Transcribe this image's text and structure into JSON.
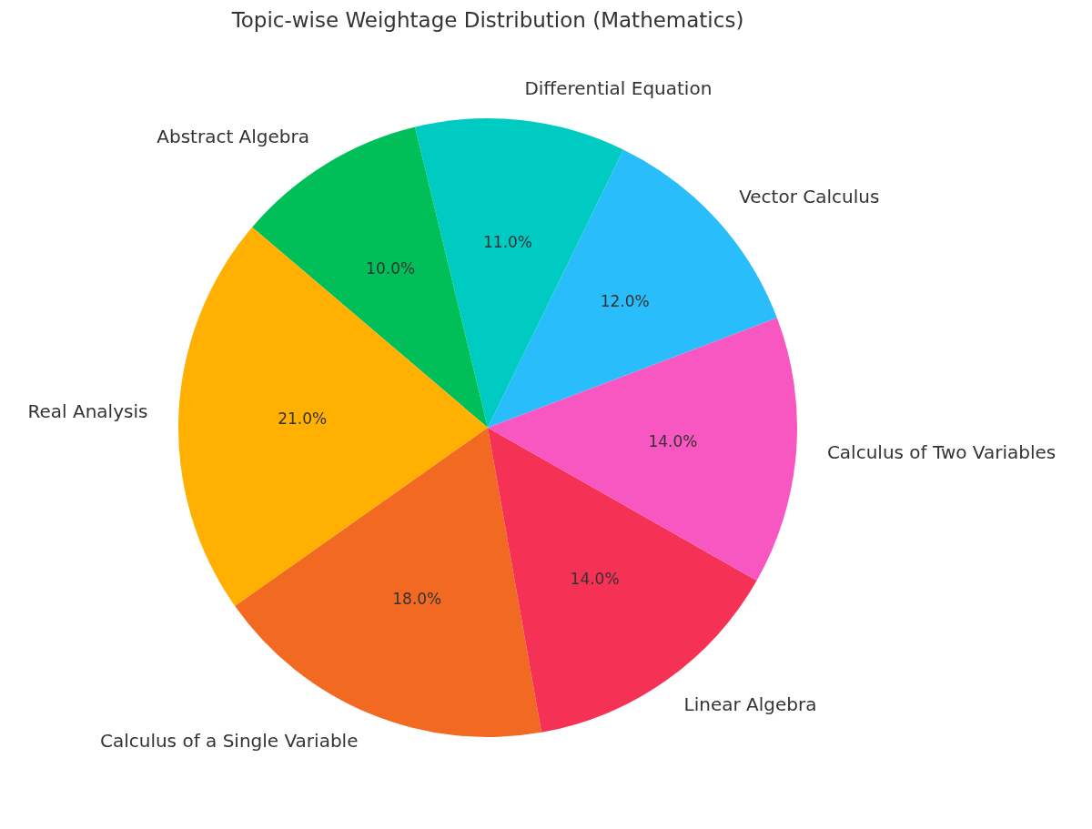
{
  "chart_data": {
    "type": "pie",
    "title": "Topic-wise Weightage Distribution (Mathematics)",
    "categories": [
      "Vector Calculus",
      "Differential Equation",
      "Abstract Algebra",
      "Real Analysis",
      "Calculus of a Single Variable",
      "Linear Algebra",
      "Calculus of Two Variables"
    ],
    "values": [
      12,
      11,
      10,
      21,
      18,
      14,
      14
    ],
    "colors": [
      "#29bdfc",
      "#00cbc3",
      "#00bf58",
      "#ffb000",
      "#f26a21",
      "#f53255",
      "#f857c2"
    ],
    "value_labels": [
      "12.0%",
      "11.0%",
      "10.0%",
      "21.0%",
      "18.0%",
      "14.0%",
      "14.0%"
    ]
  }
}
